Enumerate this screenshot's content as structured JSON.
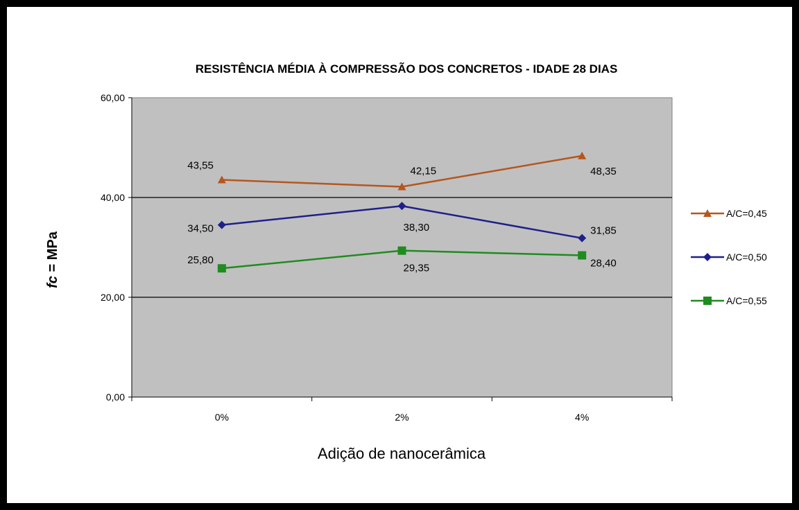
{
  "chart_data": {
    "type": "line",
    "title": "RESISTÊNCIA MÉDIA À COMPRESSÃO DOS CONCRETOS - IDADE 28 DIAS",
    "xlabel": "Adição de nanocerâmica",
    "ylabel_italic": "fc",
    "ylabel_rest": " = MPa",
    "categories": [
      "0%",
      "2%",
      "4%"
    ],
    "ylim": [
      0,
      60
    ],
    "yticks": [
      "0,00",
      "20,00",
      "40,00",
      "60,00"
    ],
    "ytick_values": [
      0,
      20,
      40,
      60
    ],
    "grid": true,
    "legend_position": "right",
    "series": [
      {
        "name": "A/C=0,45",
        "values": [
          43.55,
          42.15,
          48.35
        ],
        "labels": [
          "43,55",
          "42,15",
          "48,35"
        ],
        "color": "#B5561E",
        "marker": "triangle"
      },
      {
        "name": "A/C=0,50",
        "values": [
          34.5,
          38.3,
          31.85
        ],
        "labels": [
          "34,50",
          "38,30",
          "31,85"
        ],
        "color": "#1F1F8C",
        "marker": "diamond"
      },
      {
        "name": "A/C=0,55",
        "values": [
          25.8,
          29.35,
          28.4
        ],
        "labels": [
          "25,80",
          "29,35",
          "28,40"
        ],
        "color": "#1E8C1E",
        "marker": "square"
      }
    ],
    "colors": {
      "plot_background": "#C0C0C0"
    }
  }
}
